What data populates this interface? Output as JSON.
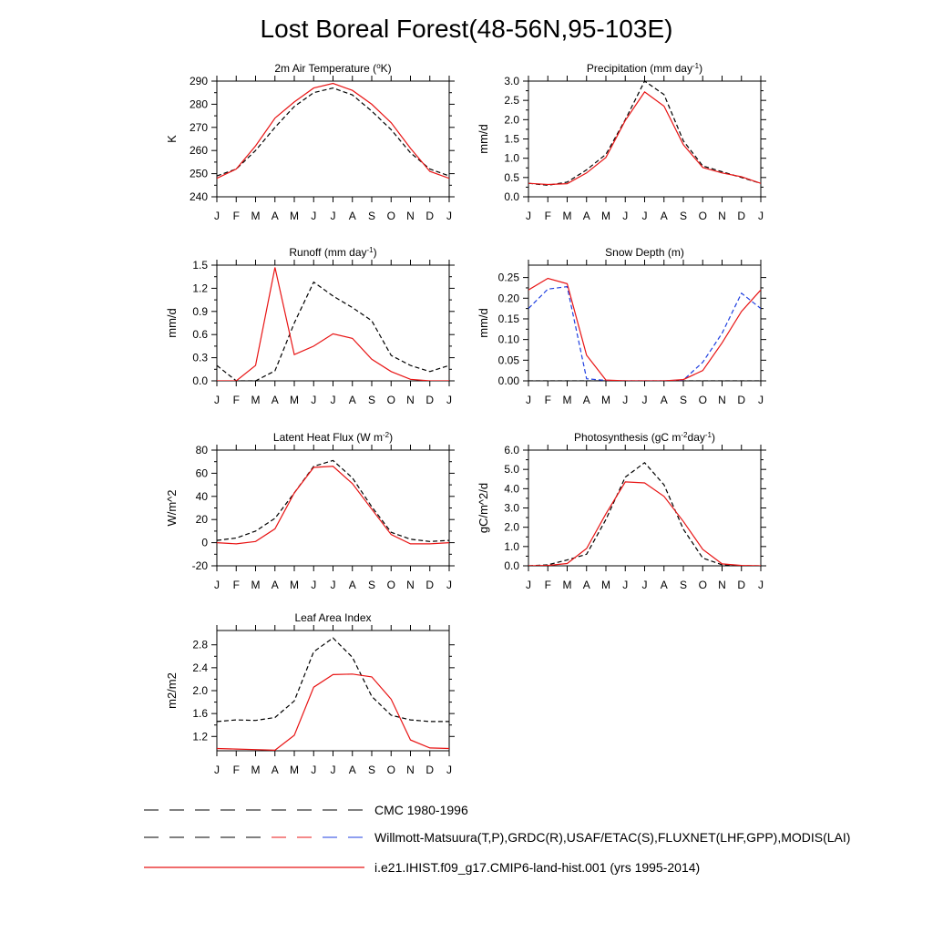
{
  "figure": {
    "title": "Lost Boreal Forest(48-56N,95-103E)",
    "month_labels": [
      "J",
      "F",
      "M",
      "A",
      "M",
      "J",
      "J",
      "A",
      "S",
      "O",
      "N",
      "D",
      "J"
    ]
  },
  "colors": {
    "obs": "#000000",
    "obs_snow": "#1f3fe0",
    "model": "#e81414"
  },
  "legend": [
    {
      "label": "CMC 1980-1996",
      "style": "dash-black"
    },
    {
      "label": "Willmott-Matsuura(T,P),GRDC(R),USAF/ETAC(S),FLUXNET(LHF,GPP),MODIS(LAI)",
      "style": "dash-mixed"
    },
    {
      "label": "i.e21.IHIST.f09_g17.CMIP6-land-hist.001 (yrs 1995-2014)",
      "style": "solid-red"
    }
  ],
  "chart_data": [
    {
      "type": "line",
      "title": "2m Air Temperature (",
      "title_sup": "o",
      "title_suffix": "K)",
      "ylabel": "K",
      "ylim": [
        240,
        290
      ],
      "yticks": [
        240,
        250,
        260,
        270,
        280,
        290
      ],
      "ytick_labels": [
        "240",
        "250",
        "260",
        "270",
        "280",
        "290"
      ],
      "series": [
        {
          "role": "obs",
          "dash": true,
          "color": "#000000",
          "values": [
            249,
            252,
            260,
            270,
            279,
            285,
            287,
            284,
            277,
            269,
            259,
            252,
            249
          ]
        },
        {
          "role": "model",
          "dash": false,
          "color": "#e81414",
          "values": [
            248,
            252,
            262,
            274,
            281,
            287,
            289,
            286,
            280,
            272,
            261,
            251,
            248
          ]
        }
      ]
    },
    {
      "type": "line",
      "title": "Precipitation (mm day",
      "title_sup": "-1",
      "title_suffix": ")",
      "ylabel": "mm/d",
      "ylim": [
        0,
        3.0
      ],
      "yticks": [
        0,
        0.5,
        1.0,
        1.5,
        2.0,
        2.5,
        3.0
      ],
      "ytick_labels": [
        "0.0",
        "0.5",
        "1.0",
        "1.5",
        "2.0",
        "2.5",
        "3.0"
      ],
      "series": [
        {
          "role": "obs",
          "dash": true,
          "color": "#000000",
          "values": [
            0.35,
            0.3,
            0.38,
            0.7,
            1.1,
            2.0,
            3.0,
            2.65,
            1.45,
            0.8,
            0.65,
            0.5,
            0.35
          ]
        },
        {
          "role": "model",
          "dash": false,
          "color": "#e81414",
          "values": [
            0.35,
            0.32,
            0.34,
            0.62,
            1.02,
            1.98,
            2.72,
            2.35,
            1.35,
            0.76,
            0.62,
            0.52,
            0.35
          ]
        }
      ]
    },
    {
      "type": "line",
      "title": "Runoff (mm day",
      "title_sup": "-1",
      "title_suffix": ")",
      "ylabel": "mm/d",
      "ylim": [
        0,
        1.5
      ],
      "yticks": [
        0,
        0.3,
        0.6,
        0.9,
        1.2,
        1.5
      ],
      "ytick_labels": [
        "0.0",
        "0.3",
        "0.6",
        "0.9",
        "1.2",
        "1.5"
      ],
      "series": [
        {
          "role": "obs",
          "dash": true,
          "color": "#000000",
          "values": [
            0.2,
            0.0,
            0.0,
            0.13,
            0.75,
            1.28,
            1.1,
            0.95,
            0.78,
            0.33,
            0.2,
            0.12,
            0.2
          ]
        },
        {
          "role": "model",
          "dash": false,
          "color": "#e81414",
          "values": [
            0.0,
            0.0,
            0.2,
            1.47,
            0.34,
            0.45,
            0.61,
            0.55,
            0.28,
            0.12,
            0.02,
            0.0,
            0.0
          ]
        }
      ]
    },
    {
      "type": "line",
      "title": "Snow Depth (m)",
      "title_sup": "",
      "title_suffix": "",
      "ylabel": "mm/d",
      "ylim": [
        0,
        0.28
      ],
      "yticks": [
        0,
        0.05,
        0.1,
        0.15,
        0.2,
        0.25
      ],
      "ytick_labels": [
        "0.00",
        "0.05",
        "0.10",
        "0.15",
        "0.20",
        "0.25"
      ],
      "series": [
        {
          "role": "cmc",
          "dash": true,
          "color": "#000000",
          "values": [
            0,
            0,
            0,
            0,
            0,
            0,
            0,
            0,
            0,
            0,
            0,
            0,
            0
          ]
        },
        {
          "role": "obs",
          "dash": true,
          "color": "#1f3fe0",
          "values": [
            0.175,
            0.222,
            0.228,
            0.005,
            0.001,
            0.0,
            0.0,
            0.0,
            0.002,
            0.045,
            0.115,
            0.212,
            0.175
          ]
        },
        {
          "role": "model",
          "dash": false,
          "color": "#e81414",
          "values": [
            0.22,
            0.248,
            0.235,
            0.062,
            0.002,
            0.0,
            0.0,
            0.0,
            0.003,
            0.025,
            0.092,
            0.168,
            0.22
          ]
        }
      ]
    },
    {
      "type": "line",
      "title": "Latent Heat Flux (W m",
      "title_sup": "-2",
      "title_suffix": ")",
      "ylabel": "W/m^2",
      "ylim": [
        -20,
        80
      ],
      "yticks": [
        -20,
        0,
        20,
        40,
        60,
        80
      ],
      "ytick_labels": [
        "-20",
        "0",
        "20",
        "40",
        "60",
        "80"
      ],
      "series": [
        {
          "role": "obs",
          "dash": true,
          "color": "#000000",
          "values": [
            2,
            4,
            10,
            21,
            43,
            66,
            71,
            56,
            31,
            9,
            3,
            1,
            2
          ]
        },
        {
          "role": "model",
          "dash": false,
          "color": "#e81414",
          "values": [
            0,
            -1,
            1,
            12,
            43,
            65,
            66,
            51,
            29,
            7,
            -1,
            -1,
            0
          ]
        }
      ]
    },
    {
      "type": "line",
      "title": "Photosynthesis (gC m",
      "title_sup": "-2",
      "title_suffix": "day",
      "title_sup2": "-1",
      "title_suffix2": ")",
      "ylabel": "gC/m^2/d",
      "ylim": [
        0,
        6.0
      ],
      "yticks": [
        0,
        1,
        2,
        3,
        4,
        5,
        6
      ],
      "ytick_labels": [
        "0.0",
        "1.0",
        "2.0",
        "3.0",
        "4.0",
        "5.0",
        "6.0"
      ],
      "series": [
        {
          "role": "obs",
          "dash": true,
          "color": "#000000",
          "values": [
            0.0,
            0.05,
            0.3,
            0.6,
            2.4,
            4.6,
            5.35,
            4.2,
            1.9,
            0.4,
            0.05,
            0.0,
            0.0
          ]
        },
        {
          "role": "model",
          "dash": false,
          "color": "#e81414",
          "values": [
            0.0,
            0.02,
            0.12,
            0.9,
            2.7,
            4.35,
            4.3,
            3.6,
            2.3,
            0.85,
            0.1,
            0.02,
            0.0
          ]
        }
      ]
    },
    {
      "type": "line",
      "title": "Leaf Area Index",
      "title_sup": "",
      "title_suffix": "",
      "ylabel": "m2/m2",
      "ylim": [
        0.95,
        3.05
      ],
      "yticks": [
        1.2,
        1.6,
        2.0,
        2.4,
        2.8
      ],
      "ytick_labels": [
        "1.2",
        "1.6",
        "2.0",
        "2.4",
        "2.8"
      ],
      "series": [
        {
          "role": "obs",
          "dash": true,
          "color": "#000000",
          "values": [
            1.46,
            1.49,
            1.48,
            1.53,
            1.82,
            2.68,
            2.92,
            2.58,
            1.9,
            1.57,
            1.49,
            1.46,
            1.46
          ]
        },
        {
          "role": "model",
          "dash": false,
          "color": "#e81414",
          "values": [
            0.99,
            0.98,
            0.97,
            0.96,
            1.22,
            2.06,
            2.28,
            2.29,
            2.24,
            1.85,
            1.14,
            1.0,
            0.99
          ]
        }
      ]
    }
  ]
}
